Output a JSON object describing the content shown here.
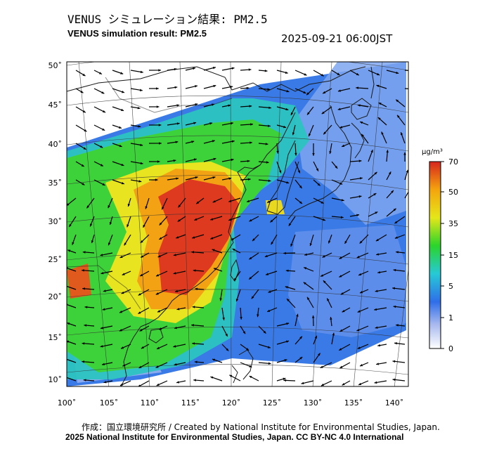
{
  "title_jp": "VENUS シミュレーション結果: PM2.5",
  "title_en": "VENUS simulation result: PM2.5",
  "timestamp": "2025-09-21 06:00JST",
  "map": {
    "lat_ticks": [
      "50˚",
      "45˚",
      "40˚",
      "35˚",
      "30˚",
      "25˚",
      "20˚",
      "15˚",
      "10˚"
    ],
    "lon_ticks": [
      "100˚",
      "105˚",
      "110˚",
      "115˚",
      "120˚",
      "125˚",
      "130˚",
      "135˚",
      "140˚"
    ],
    "lon_range": [
      100,
      141
    ],
    "lat_range": [
      9,
      50
    ]
  },
  "colorbar": {
    "unit": "μg/m³",
    "labels": [
      "70",
      "50",
      "35",
      "15",
      "5",
      "1",
      "0"
    ],
    "colors": [
      "#d7261e",
      "#f4a40e",
      "#e5e61a",
      "#2bd42b",
      "#27c9d6",
      "#2f6ee8",
      "#a7b8ee",
      "#ffffff"
    ]
  },
  "palette": {
    "coast": "#222222",
    "arrow": "#000000",
    "grid": "#333333"
  },
  "credit": "作成：国立環境研究所 / Created by National Institute for Environmental Studies, Japan.",
  "copyright": "2025 National Institute for Environmental Studies, Japan. CC BY-NC 4.0 International"
}
